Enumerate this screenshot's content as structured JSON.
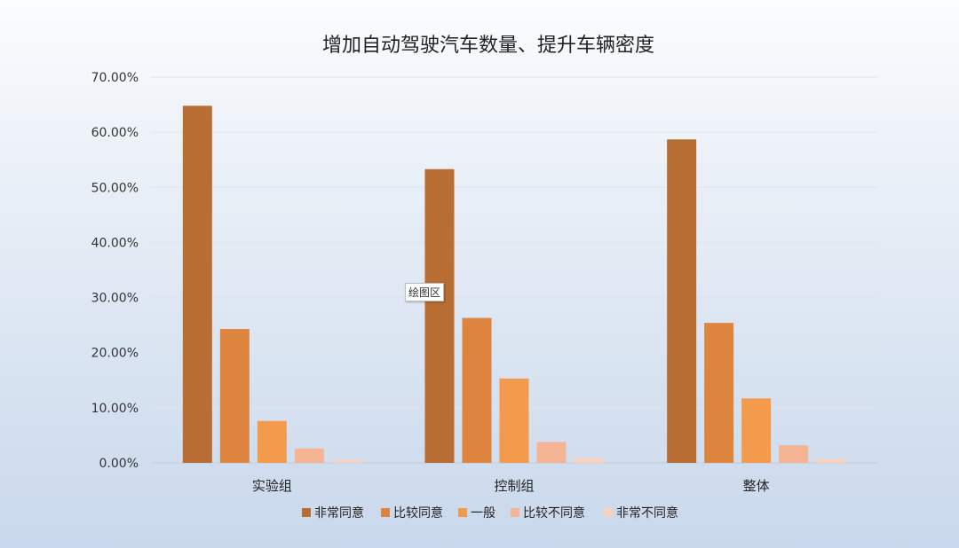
{
  "chart_data": {
    "type": "bar",
    "title": "增加自动驾驶汽车数量、提升车辆密度",
    "categories": [
      "实验组",
      "控制组",
      "整体"
    ],
    "ylim": [
      0,
      70
    ],
    "yticks": [
      "0.00%",
      "10.00%",
      "20.00%",
      "30.00%",
      "40.00%",
      "50.00%",
      "60.00%",
      "70.00%"
    ],
    "grid": true,
    "legend_position": "bottom",
    "series": [
      {
        "name": "非常同意",
        "color": "#b86d32",
        "values": [
          64.8,
          53.3,
          58.7
        ]
      },
      {
        "name": "比较同意",
        "color": "#dd843e",
        "values": [
          24.3,
          26.3,
          25.4
        ]
      },
      {
        "name": "一般",
        "color": "#f39a4c",
        "values": [
          7.6,
          15.3,
          11.7
        ]
      },
      {
        "name": "比较不同意",
        "color": "#f5b494",
        "values": [
          2.6,
          3.8,
          3.2
        ]
      },
      {
        "name": "非常不同意",
        "color": "#f9d1c0",
        "values": [
          0.5,
          0.9,
          0.7
        ]
      }
    ]
  },
  "tooltip": {
    "label": "绘图区"
  }
}
